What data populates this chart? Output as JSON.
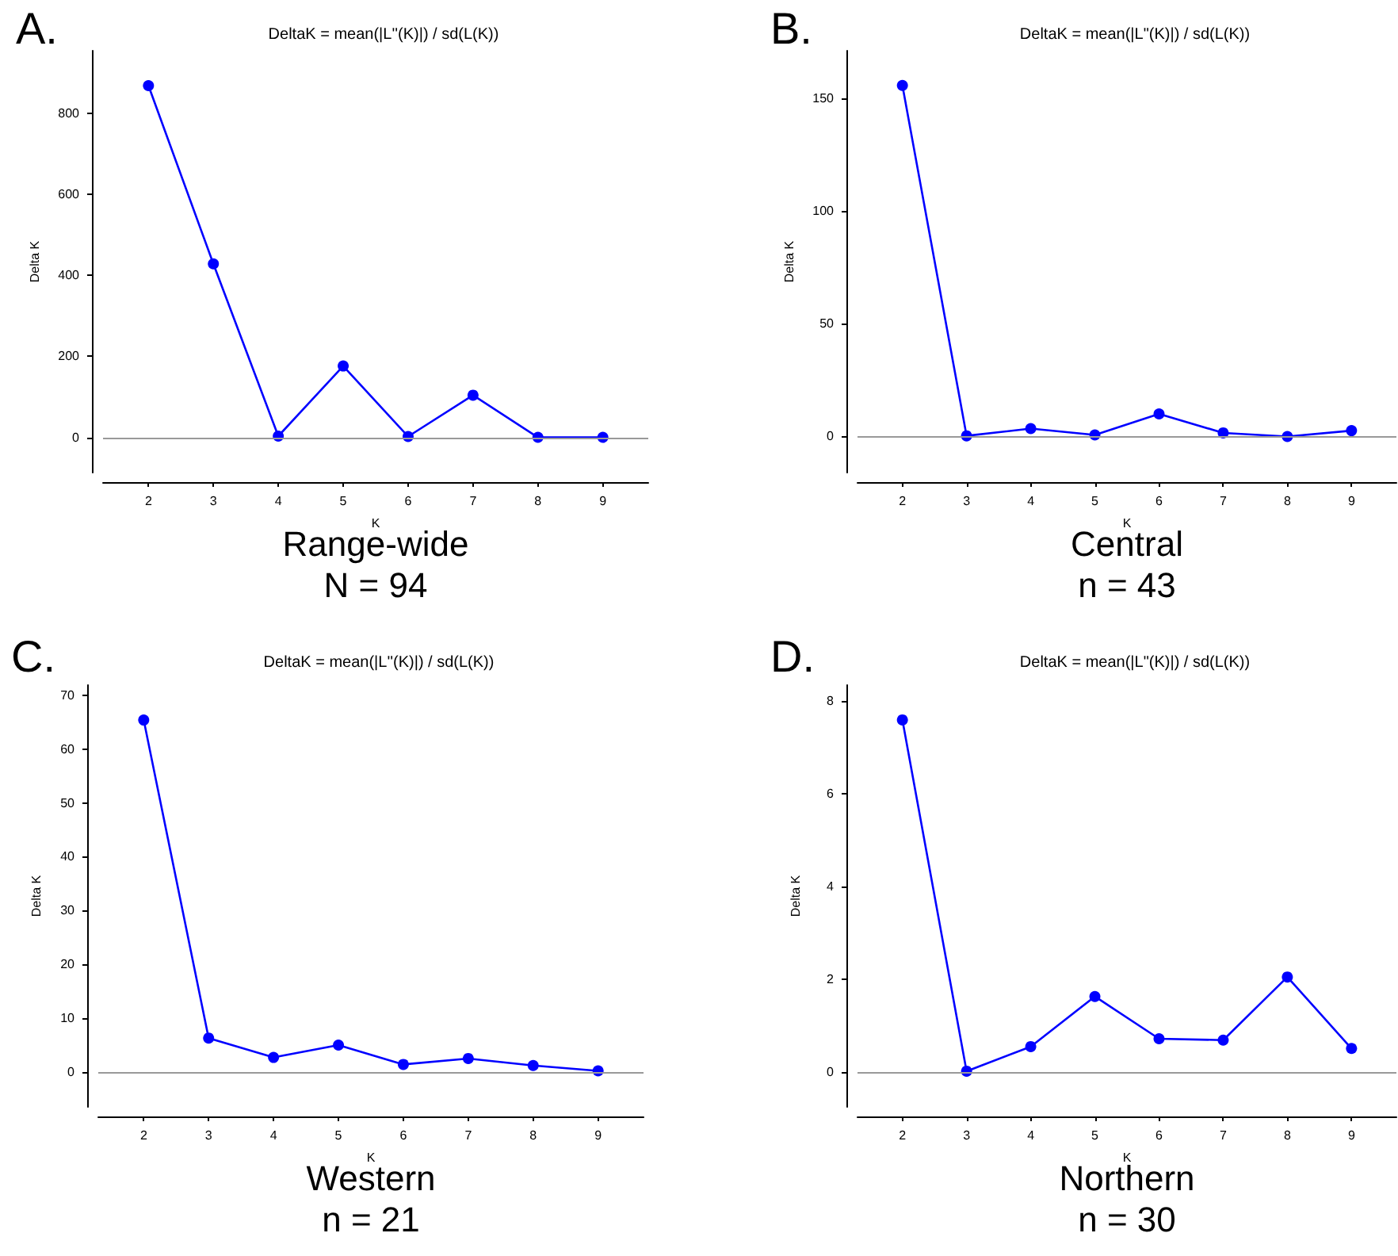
{
  "chart_data": [
    {
      "type": "line",
      "title": "DeltaK = mean(|L''(K)|) / sd(L(K))",
      "xlabel": "K",
      "ylabel": "Delta K",
      "annotations": [
        "A.",
        "Range-wide",
        "N = 94"
      ],
      "x": [
        2,
        3,
        4,
        5,
        6,
        7,
        8,
        9
      ],
      "series": [
        {
          "color": "#0000ff",
          "values": [
            868,
            428,
            3,
            176,
            2,
            104,
            0,
            0
          ]
        }
      ],
      "xlim": [
        1.3,
        9.7
      ],
      "xticks": [
        2,
        3,
        4,
        5,
        6,
        7,
        8,
        9
      ],
      "ylim": [
        -87,
        954
      ],
      "yticks": [
        0,
        200,
        400,
        600,
        800
      ],
      "ref_lines": [
        {
          "axis": "y",
          "value": 0,
          "label": null,
          "color": "#999999"
        }
      ],
      "marker": "circle",
      "line_style": "solid",
      "grid": false
    },
    {
      "type": "line",
      "title": "DeltaK = mean(|L\"(K)|) / sd(L(K))",
      "xlabel": "K",
      "ylabel": "Delta K",
      "annotations": [
        "B.",
        "Central",
        "n = 43"
      ],
      "x": [
        2,
        3,
        4,
        5,
        6,
        7,
        8,
        9
      ],
      "series": [
        {
          "color": "#0000ff",
          "values": [
            155.6,
            0.3,
            3.5,
            0.7,
            10,
            1.6,
            0,
            2.6
          ]
        }
      ],
      "xlim": [
        1.3,
        9.7
      ],
      "xticks": [
        2,
        3,
        4,
        5,
        6,
        7,
        8,
        9
      ],
      "ylim": [
        -16,
        171
      ],
      "yticks": [
        0,
        50,
        100,
        150
      ],
      "ref_lines": [
        {
          "axis": "y",
          "value": 0,
          "label": null,
          "color": "#999999"
        }
      ],
      "marker": "circle",
      "line_style": "solid",
      "grid": false
    },
    {
      "type": "line",
      "title": "DeltaK = mean(|L''(K)|) / sd(L(K))",
      "xlabel": "K",
      "ylabel": "Delta K",
      "annotations": [
        "C.",
        "Western",
        "n = 21"
      ],
      "x": [
        2,
        3,
        4,
        5,
        6,
        7,
        8,
        9
      ],
      "series": [
        {
          "color": "#0000ff",
          "values": [
            65.4,
            6.3,
            2.7,
            5.0,
            1.4,
            2.5,
            1.2,
            0.2
          ]
        }
      ],
      "xlim": [
        1.3,
        9.7
      ],
      "xticks": [
        2,
        3,
        4,
        5,
        6,
        7,
        8,
        9
      ],
      "ylim": [
        -6.5,
        71.9
      ],
      "yticks": [
        0,
        10,
        20,
        30,
        40,
        50,
        60,
        70
      ],
      "ref_lines": [
        {
          "axis": "y",
          "value": 0,
          "label": null,
          "color": "#999999"
        }
      ],
      "marker": "circle",
      "line_style": "solid",
      "grid": false
    },
    {
      "type": "line",
      "title": "DeltaK = mean(|L\"(K)|) / sd(L(K))",
      "xlabel": "K",
      "ylabel": "Delta K",
      "annotations": [
        "D.",
        "Northern",
        "n = 30"
      ],
      "x": [
        2,
        3,
        4,
        5,
        6,
        7,
        8,
        9
      ],
      "series": [
        {
          "color": "#0000ff",
          "values": [
            7.59,
            0.02,
            0.55,
            1.63,
            0.72,
            0.69,
            2.05,
            0.51
          ]
        }
      ],
      "xlim": [
        1.3,
        9.7
      ],
      "xticks": [
        2,
        3,
        4,
        5,
        6,
        7,
        8,
        9
      ],
      "ylim": [
        -0.75,
        8.34
      ],
      "yticks": [
        0,
        2,
        4,
        6,
        8
      ],
      "ref_lines": [
        {
          "axis": "y",
          "value": 0,
          "label": null,
          "color": "#999999"
        }
      ],
      "marker": "circle",
      "line_style": "solid",
      "grid": false
    }
  ]
}
